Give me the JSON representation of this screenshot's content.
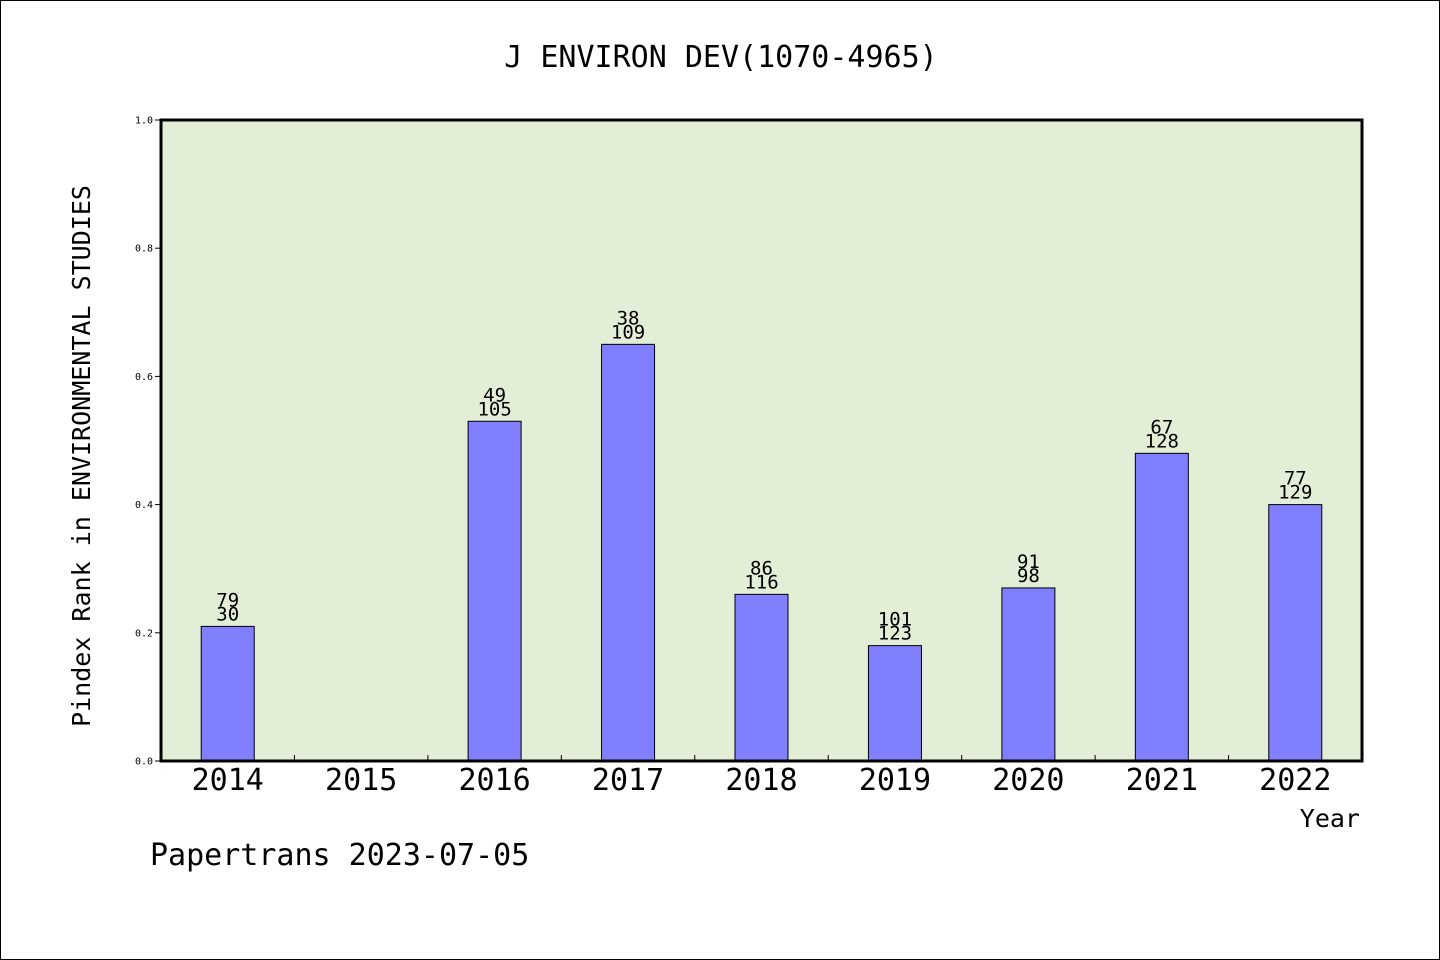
{
  "chart_data": {
    "type": "bar",
    "title": "J ENVIRON DEV(1070-4965)",
    "xlabel": "Year",
    "ylabel": "Pindex Rank in ENVIRONMENTAL STUDIES",
    "ylim": [
      0,
      1.0
    ],
    "yticks": [
      "0.0",
      "0.2",
      "0.4",
      "0.6",
      "0.8",
      "1.0"
    ],
    "categories": [
      "2014",
      "2015",
      "2016",
      "2017",
      "2018",
      "2019",
      "2020",
      "2021",
      "2022"
    ],
    "values": [
      0.21,
      null,
      0.53,
      0.65,
      0.26,
      0.18,
      0.27,
      0.48,
      0.4
    ],
    "labels_top": [
      "79",
      "",
      "49",
      "38",
      "86",
      "101",
      "91",
      "67",
      "77"
    ],
    "labels_bottom": [
      "30",
      "",
      "105",
      "109",
      "116",
      "123",
      "98",
      "128",
      "129"
    ],
    "grid": false,
    "legend": "none",
    "colors": {
      "plot_background": "#e2efd6",
      "bar": "#8080ff",
      "bar_edge": "#000000"
    }
  },
  "footer": "Papertrans 2023-07-05"
}
